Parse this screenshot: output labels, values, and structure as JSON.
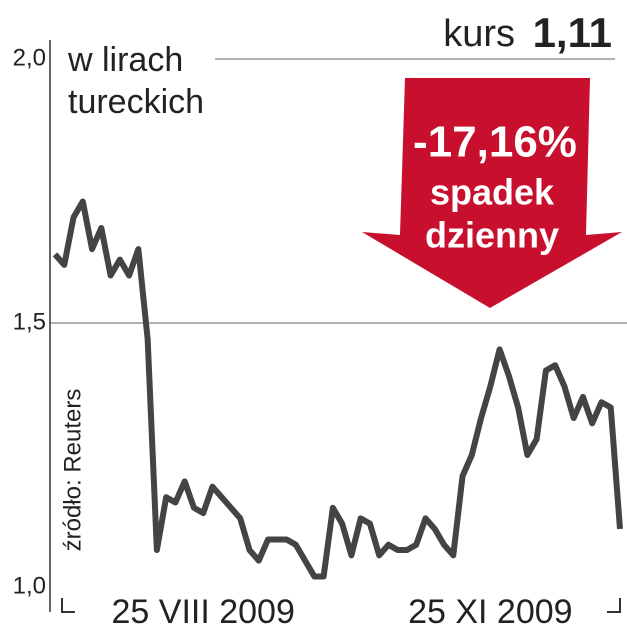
{
  "chart_data": {
    "type": "line",
    "y_label": [
      "w lirach",
      "tureckich"
    ],
    "annotations": {
      "kurs_label": "kurs",
      "kurs_value": "1,11",
      "change": "-17,16%",
      "change_text": [
        "spadek",
        "dzienny"
      ],
      "source": "źródło: Reuters"
    },
    "categories": [
      null,
      null,
      null,
      null,
      null,
      null,
      null,
      null,
      null,
      null,
      null,
      null,
      null,
      null,
      null,
      null,
      "25 VIII 2009",
      null,
      null,
      null,
      null,
      null,
      null,
      null,
      null,
      null,
      null,
      null,
      null,
      null,
      null,
      null,
      null,
      null,
      null,
      null,
      null,
      null,
      null,
      null,
      null,
      null,
      null,
      null,
      null,
      null,
      null,
      "25 XI 2009",
      null,
      null,
      null,
      null,
      null,
      null,
      null,
      null,
      null,
      null,
      null,
      null,
      null,
      null
    ],
    "series": [
      {
        "color": "#444444",
        "values": [
          1.63,
          1.61,
          1.7,
          1.73,
          1.64,
          1.68,
          1.59,
          1.62,
          1.59,
          1.64,
          1.47,
          1.07,
          1.17,
          1.16,
          1.2,
          1.15,
          1.14,
          1.19,
          1.17,
          1.15,
          1.13,
          1.07,
          1.05,
          1.09,
          1.09,
          1.09,
          1.08,
          1.05,
          1.02,
          1.02,
          1.15,
          1.12,
          1.06,
          1.13,
          1.12,
          1.06,
          1.08,
          1.07,
          1.07,
          1.08,
          1.13,
          1.11,
          1.08,
          1.06,
          1.21,
          1.25,
          1.32,
          1.38,
          1.45,
          1.4,
          1.34,
          1.25,
          1.28,
          1.41,
          1.42,
          1.38,
          1.32,
          1.36,
          1.31,
          1.35,
          1.34,
          1.11
        ]
      }
    ],
    "ylim": [
      1.0,
      2.0
    ],
    "yticks": [
      {
        "value": 1.0,
        "label": "1,0"
      },
      {
        "value": 1.5,
        "label": "1,5"
      },
      {
        "value": 2.0,
        "label": "2,0"
      }
    ],
    "grid": true
  }
}
